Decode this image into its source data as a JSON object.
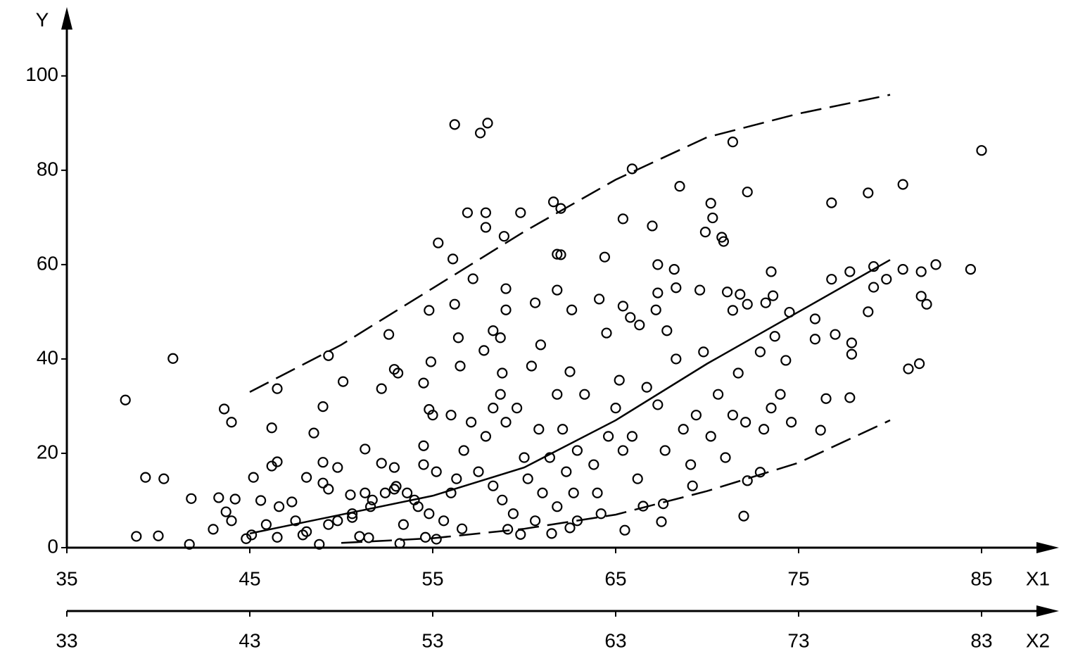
{
  "chart_data": {
    "type": "scatter",
    "y_label": "Y",
    "x_label": "X1",
    "x2_label": "X2",
    "xlim": [
      35,
      89
    ],
    "xticks": [
      35,
      45,
      55,
      65,
      75,
      85
    ],
    "x2lim": [
      33,
      87
    ],
    "x2ticks": [
      33,
      43,
      53,
      63,
      73,
      83
    ],
    "ylim": [
      0,
      114
    ],
    "yticks": [
      0,
      20,
      40,
      60,
      80,
      100
    ],
    "color": "#000000",
    "x": [
      38.2,
      39.3,
      38.8,
      40.0,
      40.3,
      40.8,
      41.7,
      41.8,
      43.0,
      43.3,
      43.6,
      43.7,
      44.0,
      44.2,
      44.0,
      44.8,
      45.2,
      45.6,
      45.9,
      46.2,
      46.2,
      46.5,
      46.5,
      46.6,
      47.3,
      47.5,
      48.1,
      48.5,
      49.0,
      49.0,
      49.0,
      49.3,
      49.3,
      49.8,
      50.1,
      50.5,
      50.6,
      51.3,
      51.6,
      52.2,
      52.2,
      52.6,
      52.9,
      52.9,
      53.1,
      53.0,
      53.4,
      54.5,
      54.5,
      54.5,
      54.8,
      54.9,
      54.8,
      55.3,
      56.1,
      56.2,
      56.2,
      56.4,
      56.5,
      56.9,
      57.2,
      57.6,
      58.0,
      57.9,
      57.9,
      57.8,
      58.9,
      59.0,
      59.8,
      58.7,
      58.8,
      60.6,
      60.9,
      61.6,
      62.0,
      61.8,
      62.0,
      61.8,
      62.6,
      62.5,
      64.1,
      64.4,
      64.5,
      65.4,
      65.9,
      65.4,
      65.8,
      66.3,
      67.0,
      67.3,
      67.3,
      67.2,
      67.8,
      68.2,
      68.3,
      68.5,
      69.6,
      70.2,
      70.3,
      69.9,
      70.8,
      70.9,
      71.4,
      72.2,
      71.1,
      71.8,
      72.2,
      71.4,
      73.5,
      73.2,
      73.6,
      74.5,
      73.7,
      74.3,
      75.9,
      75.9,
      76.8,
      76.8,
      77.0,
      76.5,
      76.2,
      77.8,
      77.9,
      77.9,
      77.8,
      78.8,
      78.8,
      79.1,
      79.1,
      79.8,
      80.7,
      80.7,
      81.0,
      81.6,
      81.7,
      81.7,
      82.0,
      82.5,
      84.4,
      85.0,
      72.0,
      72.2,
      72.9,
      67.5,
      67.6,
      66.5,
      65.5,
      64.2,
      62.9,
      61.5,
      59.8,
      59.1,
      56.6,
      55.2,
      54.6,
      53.2,
      51.5,
      51.0,
      48.8,
      47.9,
      46.5,
      45.1,
      52.4,
      52.9,
      54.0,
      54.8,
      55.6,
      56.0,
      56.3,
      56.7,
      57.1,
      57.9,
      58.3,
      58.7,
      59.0,
      59.6,
      60.0,
      60.2,
      60.4,
      60.8,
      61.0,
      61.4,
      61.8,
      62.1,
      62.3,
      62.7,
      62.9,
      63.3,
      63.8,
      64.0,
      64.6,
      65.0,
      65.2,
      65.4,
      65.9,
      66.2,
      66.7,
      67.3,
      67.7,
      68.3,
      68.7,
      69.1,
      69.2,
      69.4,
      69.8,
      70.2,
      70.6,
      71.0,
      71.4,
      71.7,
      72.1,
      72.9,
      73.1,
      73.5,
      74.0,
      74.6,
      50.6,
      51.3,
      51.7,
      49.8,
      49.3,
      48.1,
      53.6,
      54.2,
      55.2,
      55.0,
      56.0,
      57.5,
      58.3,
      58.8,
      59.4,
      60.6,
      61.8,
      62.5,
      58.3,
      59.0
    ],
    "values": [
      31.3,
      14.9,
      2.4,
      2.5,
      14.6,
      40.1,
      0.7,
      10.4,
      3.9,
      10.6,
      29.4,
      7.6,
      26.6,
      10.3,
      5.7,
      1.9,
      14.9,
      10.0,
      4.9,
      25.4,
      17.3,
      18.2,
      33.7,
      8.7,
      9.7,
      5.7,
      14.9,
      24.3,
      29.9,
      18.1,
      13.7,
      40.7,
      12.4,
      17.0,
      35.2,
      11.2,
      7.2,
      20.9,
      8.7,
      17.9,
      33.7,
      45.2,
      37.8,
      17.0,
      37.0,
      13.0,
      4.9,
      34.9,
      21.6,
      17.6,
      50.3,
      39.4,
      29.3,
      64.6,
      61.2,
      89.7,
      51.6,
      44.5,
      38.5,
      71.0,
      57.0,
      87.9,
      90.0,
      71.0,
      67.9,
      41.8,
      66.0,
      54.9,
      71.0,
      44.5,
      37.0,
      51.9,
      43.0,
      73.3,
      71.9,
      62.2,
      62.1,
      54.6,
      50.4,
      37.3,
      52.7,
      61.6,
      45.5,
      69.7,
      80.3,
      51.2,
      48.8,
      47.2,
      68.2,
      60.0,
      54.0,
      50.4,
      46.0,
      59.0,
      55.1,
      76.6,
      54.6,
      73.0,
      69.9,
      66.9,
      65.8,
      64.9,
      86.0,
      75.4,
      54.2,
      53.7,
      51.6,
      50.3,
      58.5,
      51.9,
      53.4,
      49.9,
      44.8,
      39.7,
      48.5,
      44.2,
      73.1,
      56.9,
      45.2,
      31.6,
      24.9,
      58.5,
      43.4,
      41.0,
      31.8,
      75.2,
      50.0,
      59.6,
      55.2,
      56.9,
      77.0,
      59.0,
      37.9,
      39.0,
      58.5,
      53.3,
      51.6,
      60.0,
      59.0,
      84.2,
      6.7,
      14.2,
      16.0,
      5.5,
      9.3,
      8.8,
      3.7,
      7.2,
      5.7,
      3.0,
      2.8,
      3.9,
      4.0,
      1.8,
      2.2,
      0.9,
      2.1,
      2.4,
      0.7,
      2.7,
      2.2,
      2.7,
      11.6,
      12.4,
      10.1,
      7.2,
      5.7,
      11.6,
      14.6,
      20.6,
      26.6,
      23.6,
      29.6,
      32.5,
      26.6,
      29.6,
      19.1,
      14.6,
      38.5,
      25.1,
      11.6,
      19.1,
      32.5,
      25.1,
      16.1,
      11.6,
      20.6,
      32.5,
      17.6,
      11.6,
      23.6,
      29.6,
      35.5,
      20.6,
      23.6,
      14.6,
      34.0,
      30.3,
      20.6,
      40.0,
      25.1,
      17.6,
      13.1,
      28.1,
      41.5,
      23.6,
      32.5,
      19.1,
      28.1,
      37.0,
      26.6,
      41.5,
      25.1,
      29.6,
      32.5,
      26.6,
      6.4,
      11.6,
      10.1,
      5.7,
      4.9,
      3.4,
      11.6,
      8.7,
      16.1,
      28.1,
      28.1,
      16.1,
      13.1,
      10.1,
      7.2,
      5.7,
      8.7,
      4.2,
      46.0,
      50.4
    ],
    "curves": [
      {
        "style": "dashed",
        "x": [
          45,
          50,
          55,
          60,
          65,
          70,
          75,
          80
        ],
        "values": [
          33,
          43,
          55,
          67,
          78,
          87,
          92,
          96
        ]
      },
      {
        "style": "solid",
        "x": [
          45,
          50,
          55,
          60,
          65,
          70,
          75,
          80
        ],
        "values": [
          3,
          7,
          11,
          17,
          27,
          39,
          50,
          61
        ]
      },
      {
        "style": "dashed",
        "x": [
          50,
          55,
          60,
          65,
          70,
          75,
          80
        ],
        "values": [
          1,
          2,
          4,
          7,
          12,
          18,
          27
        ]
      }
    ]
  }
}
